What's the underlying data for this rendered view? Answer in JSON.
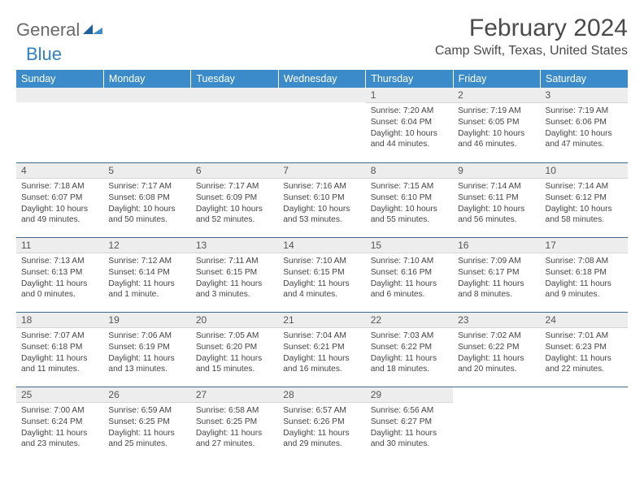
{
  "logo": {
    "word1": "General",
    "word2": "Blue"
  },
  "title": "February 2024",
  "subtitle": "Camp Swift, Texas, United States",
  "colors": {
    "header_bg": "#3b8bca",
    "header_text": "#ffffff",
    "daynum_bg": "#ededed",
    "row_border": "#3b6a8f",
    "text": "#444444",
    "title_color": "#4a4a4a",
    "logo_gray": "#6a6a6a",
    "logo_blue": "#2f7fc2"
  },
  "weekdays": [
    "Sunday",
    "Monday",
    "Tuesday",
    "Wednesday",
    "Thursday",
    "Friday",
    "Saturday"
  ],
  "weeks": [
    [
      null,
      null,
      null,
      null,
      {
        "n": "1",
        "sunrise": "7:20 AM",
        "sunset": "6:04 PM",
        "daylight": "10 hours and 44 minutes."
      },
      {
        "n": "2",
        "sunrise": "7:19 AM",
        "sunset": "6:05 PM",
        "daylight": "10 hours and 46 minutes."
      },
      {
        "n": "3",
        "sunrise": "7:19 AM",
        "sunset": "6:06 PM",
        "daylight": "10 hours and 47 minutes."
      }
    ],
    [
      {
        "n": "4",
        "sunrise": "7:18 AM",
        "sunset": "6:07 PM",
        "daylight": "10 hours and 49 minutes."
      },
      {
        "n": "5",
        "sunrise": "7:17 AM",
        "sunset": "6:08 PM",
        "daylight": "10 hours and 50 minutes."
      },
      {
        "n": "6",
        "sunrise": "7:17 AM",
        "sunset": "6:09 PM",
        "daylight": "10 hours and 52 minutes."
      },
      {
        "n": "7",
        "sunrise": "7:16 AM",
        "sunset": "6:10 PM",
        "daylight": "10 hours and 53 minutes."
      },
      {
        "n": "8",
        "sunrise": "7:15 AM",
        "sunset": "6:10 PM",
        "daylight": "10 hours and 55 minutes."
      },
      {
        "n": "9",
        "sunrise": "7:14 AM",
        "sunset": "6:11 PM",
        "daylight": "10 hours and 56 minutes."
      },
      {
        "n": "10",
        "sunrise": "7:14 AM",
        "sunset": "6:12 PM",
        "daylight": "10 hours and 58 minutes."
      }
    ],
    [
      {
        "n": "11",
        "sunrise": "7:13 AM",
        "sunset": "6:13 PM",
        "daylight": "11 hours and 0 minutes."
      },
      {
        "n": "12",
        "sunrise": "7:12 AM",
        "sunset": "6:14 PM",
        "daylight": "11 hours and 1 minute."
      },
      {
        "n": "13",
        "sunrise": "7:11 AM",
        "sunset": "6:15 PM",
        "daylight": "11 hours and 3 minutes."
      },
      {
        "n": "14",
        "sunrise": "7:10 AM",
        "sunset": "6:15 PM",
        "daylight": "11 hours and 4 minutes."
      },
      {
        "n": "15",
        "sunrise": "7:10 AM",
        "sunset": "6:16 PM",
        "daylight": "11 hours and 6 minutes."
      },
      {
        "n": "16",
        "sunrise": "7:09 AM",
        "sunset": "6:17 PM",
        "daylight": "11 hours and 8 minutes."
      },
      {
        "n": "17",
        "sunrise": "7:08 AM",
        "sunset": "6:18 PM",
        "daylight": "11 hours and 9 minutes."
      }
    ],
    [
      {
        "n": "18",
        "sunrise": "7:07 AM",
        "sunset": "6:18 PM",
        "daylight": "11 hours and 11 minutes."
      },
      {
        "n": "19",
        "sunrise": "7:06 AM",
        "sunset": "6:19 PM",
        "daylight": "11 hours and 13 minutes."
      },
      {
        "n": "20",
        "sunrise": "7:05 AM",
        "sunset": "6:20 PM",
        "daylight": "11 hours and 15 minutes."
      },
      {
        "n": "21",
        "sunrise": "7:04 AM",
        "sunset": "6:21 PM",
        "daylight": "11 hours and 16 minutes."
      },
      {
        "n": "22",
        "sunrise": "7:03 AM",
        "sunset": "6:22 PM",
        "daylight": "11 hours and 18 minutes."
      },
      {
        "n": "23",
        "sunrise": "7:02 AM",
        "sunset": "6:22 PM",
        "daylight": "11 hours and 20 minutes."
      },
      {
        "n": "24",
        "sunrise": "7:01 AM",
        "sunset": "6:23 PM",
        "daylight": "11 hours and 22 minutes."
      }
    ],
    [
      {
        "n": "25",
        "sunrise": "7:00 AM",
        "sunset": "6:24 PM",
        "daylight": "11 hours and 23 minutes."
      },
      {
        "n": "26",
        "sunrise": "6:59 AM",
        "sunset": "6:25 PM",
        "daylight": "11 hours and 25 minutes."
      },
      {
        "n": "27",
        "sunrise": "6:58 AM",
        "sunset": "6:25 PM",
        "daylight": "11 hours and 27 minutes."
      },
      {
        "n": "28",
        "sunrise": "6:57 AM",
        "sunset": "6:26 PM",
        "daylight": "11 hours and 29 minutes."
      },
      {
        "n": "29",
        "sunrise": "6:56 AM",
        "sunset": "6:27 PM",
        "daylight": "11 hours and 30 minutes."
      },
      null,
      null
    ]
  ],
  "labels": {
    "sunrise": "Sunrise: ",
    "sunset": "Sunset: ",
    "daylight": "Daylight: "
  }
}
